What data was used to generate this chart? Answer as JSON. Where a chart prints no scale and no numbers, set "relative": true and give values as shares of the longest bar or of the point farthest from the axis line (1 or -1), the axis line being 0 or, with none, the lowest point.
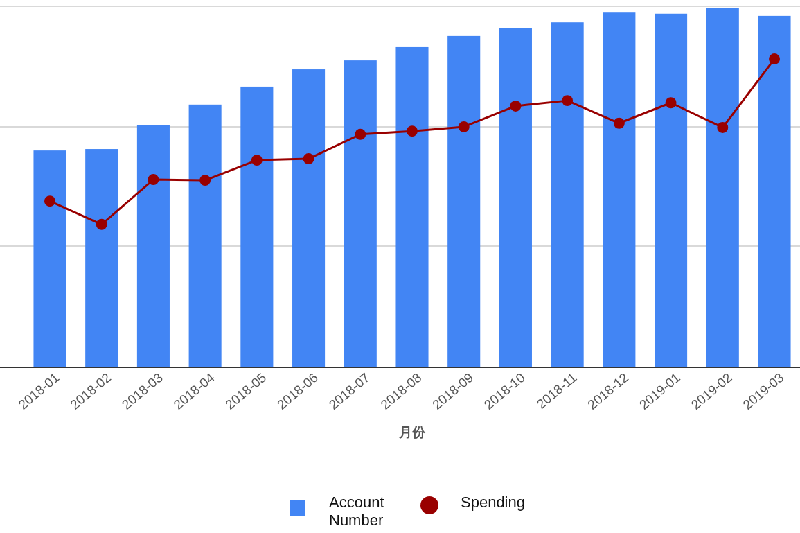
{
  "chart_data": {
    "type": "bar",
    "relative": true,
    "xlabel": "月份",
    "categories": [
      "2018-01",
      "2018-02",
      "2018-03",
      "2018-04",
      "2018-05",
      "2018-06",
      "2018-07",
      "2018-08",
      "2018-09",
      "2018-10",
      "2018-11",
      "2018-12",
      "2019-01",
      "2019-02",
      "2019-03"
    ],
    "series": [
      {
        "name": "Account Number",
        "color": "#4285f4",
        "values": [
          0.604,
          0.608,
          0.674,
          0.732,
          0.782,
          0.83,
          0.855,
          0.892,
          0.923,
          0.944,
          0.961,
          0.988,
          0.985,
          1,
          0.979
        ]
      },
      {
        "name": "Spending",
        "type": "line",
        "color": "#990000",
        "marker": "circle",
        "values": [
          0.463,
          0.398,
          0.523,
          0.521,
          0.577,
          0.581,
          0.649,
          0.658,
          0.67,
          0.728,
          0.743,
          0.68,
          0.737,
          0.668,
          0.859
        ]
      }
    ],
    "ref_lines": [
      {
        "axis": "y",
        "value": 0.338,
        "color": "#d9d9d9"
      },
      {
        "axis": "y",
        "value": 0.67,
        "color": "#d9d9d9"
      },
      {
        "axis": "y",
        "value": 1.006,
        "color": "#d9d9d9"
      }
    ],
    "legend": "bottom"
  }
}
